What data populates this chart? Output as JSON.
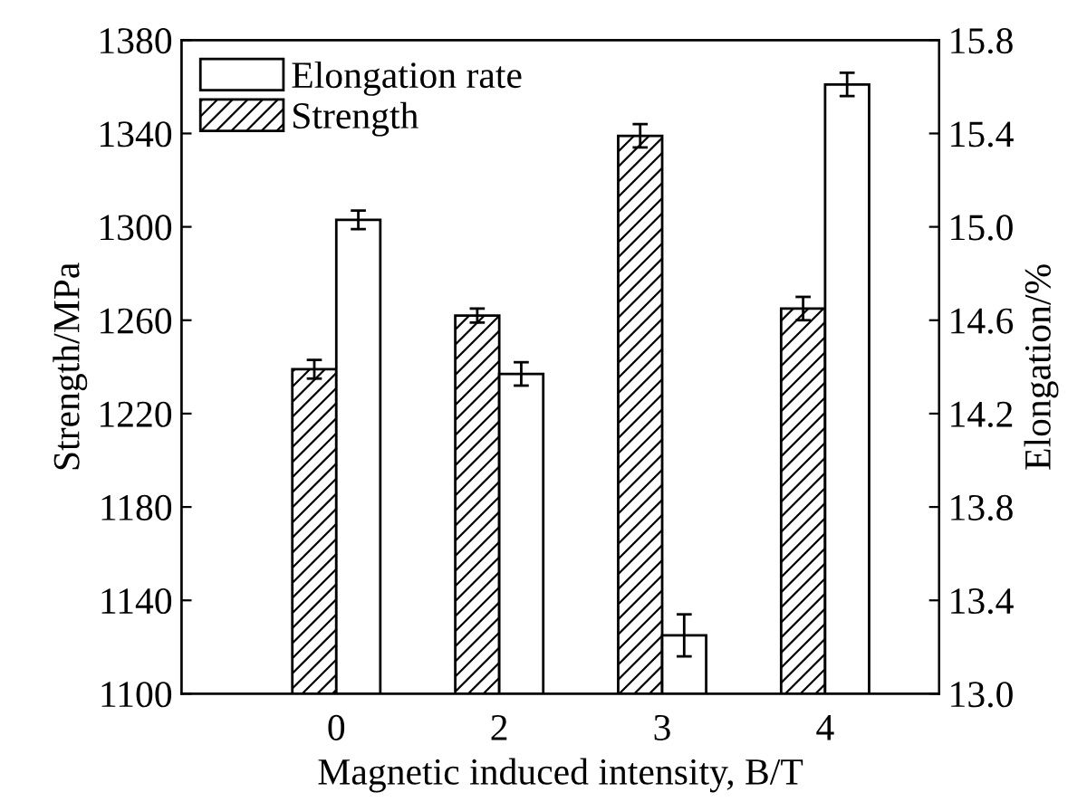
{
  "chart_data": {
    "type": "bar",
    "xlabel": "Magnetic induced intensity, B/T",
    "ylabel": "Strength/MPa",
    "y2label": "Elongation/%",
    "categories": [
      "0",
      "2",
      "3",
      "4"
    ],
    "series": [
      {
        "name": "Elongation rate",
        "color": "#ffffff",
        "axis": "y2",
        "values": [
          15.03,
          14.37,
          13.25,
          15.61
        ],
        "errors": [
          0.04,
          0.05,
          0.09,
          0.05
        ]
      },
      {
        "name": "Strength",
        "color": "#000000",
        "values": [
          1239,
          1262,
          1339,
          1265
        ],
        "errors": [
          4,
          3,
          5,
          5
        ]
      }
    ],
    "ylim": [
      1100,
      1380
    ],
    "yticks": [
      1100,
      1140,
      1180,
      1220,
      1260,
      1300,
      1340,
      1380
    ],
    "y2lim": [
      13.0,
      15.8
    ],
    "y2ticks": [
      {
        "value": 13.0,
        "label": "13.0"
      },
      {
        "value": 13.4,
        "label": "13.4"
      },
      {
        "value": 13.8,
        "label": "13.8"
      },
      {
        "value": 14.2,
        "label": "14.2"
      },
      {
        "value": 14.6,
        "label": "14.6"
      },
      {
        "value": 15.0,
        "label": "15.0"
      },
      {
        "value": 15.4,
        "label": "15.4"
      },
      {
        "value": 15.8,
        "label": "15.8"
      }
    ],
    "legend": "top left",
    "grid": false
  }
}
